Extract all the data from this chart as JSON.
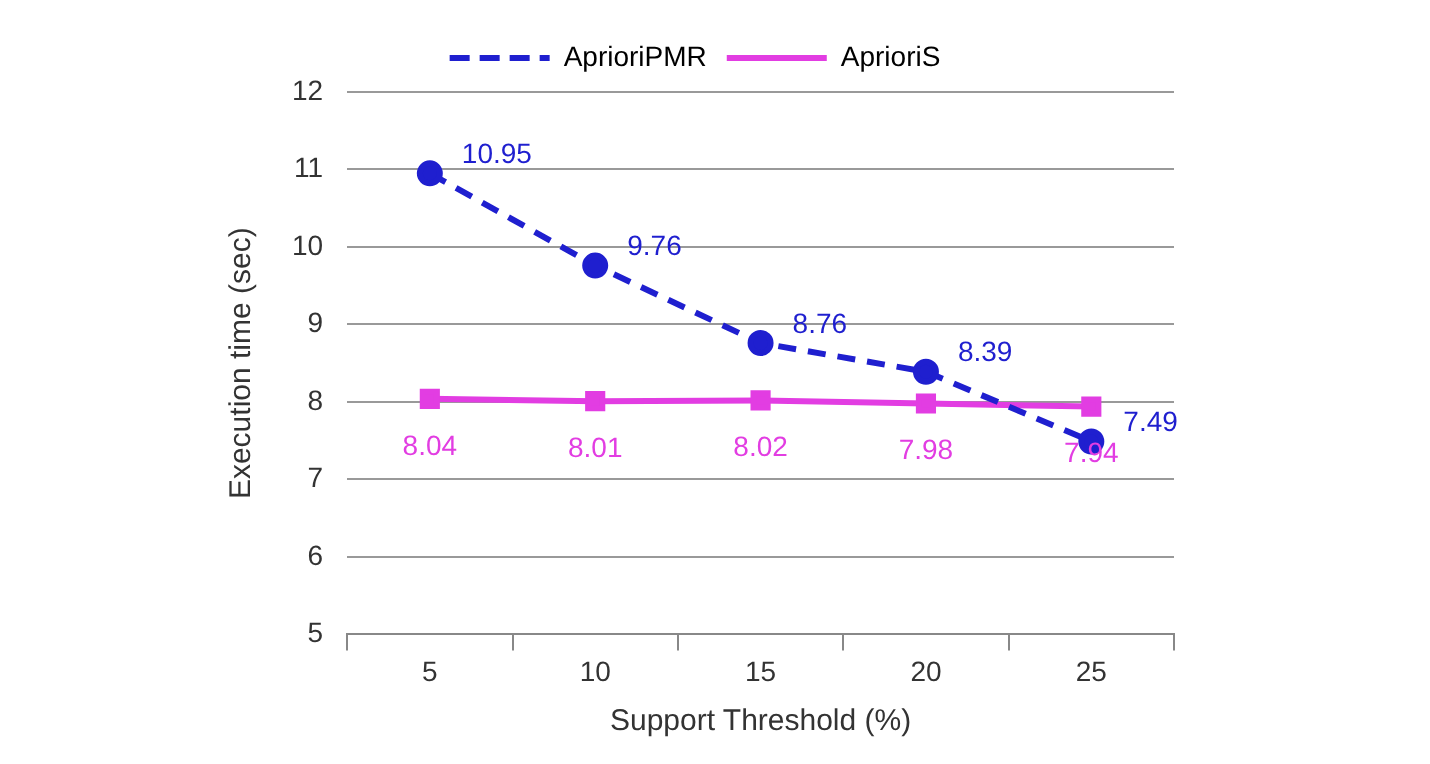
{
  "chart_data": {
    "type": "line",
    "xlabel": "Support Threshold (%)",
    "ylabel": "Execution time (sec)",
    "categories": [
      "5",
      "10",
      "15",
      "20",
      "25"
    ],
    "series": [
      {
        "name": "AprioriPMR",
        "color": "#1f1fcf",
        "values": [
          10.95,
          9.76,
          8.76,
          8.39,
          7.49
        ],
        "marker": "circle",
        "line_style": "dashed"
      },
      {
        "name": "AprioriS",
        "color": "#e23de2",
        "values": [
          8.04,
          8.01,
          8.02,
          7.98,
          7.94
        ],
        "marker": "square",
        "line_style": "solid"
      }
    ],
    "ylim": [
      5,
      12
    ],
    "yticks": [
      5,
      6,
      7,
      8,
      9,
      10,
      11,
      12
    ],
    "grid": "y",
    "legend": "top",
    "data_labels": true
  }
}
